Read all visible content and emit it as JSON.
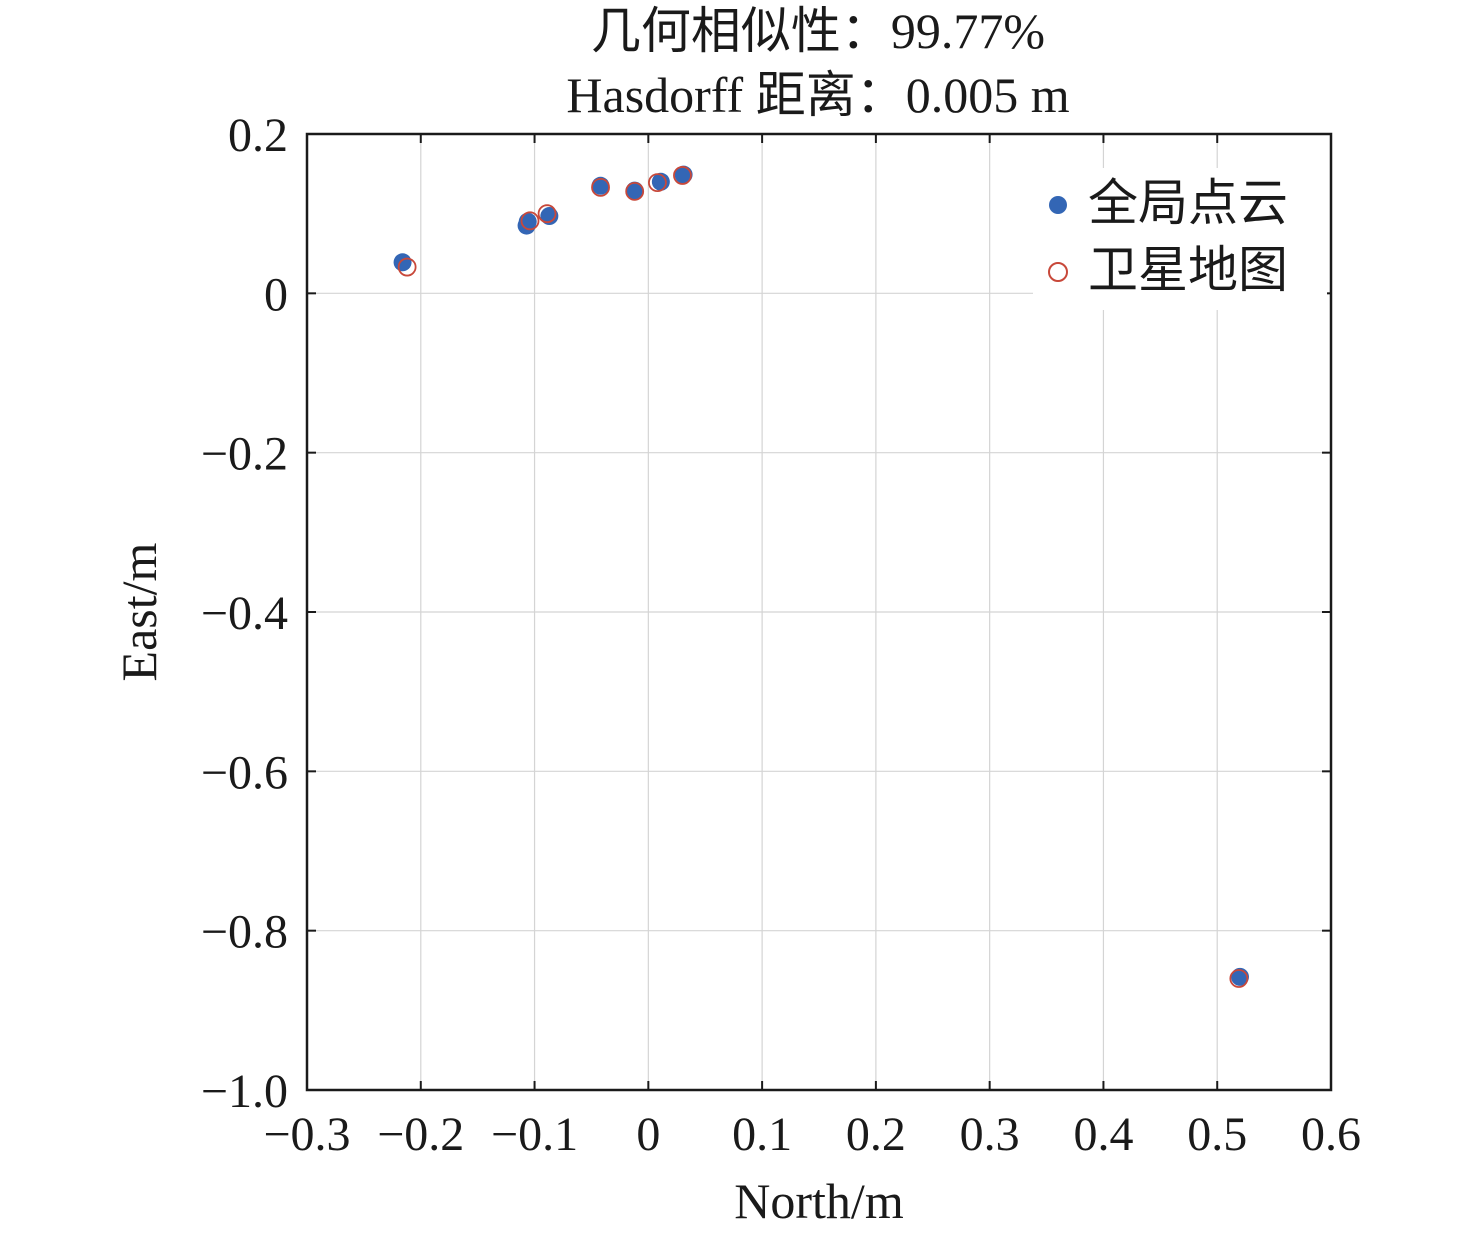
{
  "chart_data": {
    "type": "scatter",
    "title": [
      "几何相似性：99.77%",
      "Hasdorff 距离：0.005 m"
    ],
    "xlabel": "North/m",
    "ylabel": "East/m",
    "xlim": [
      -0.3,
      0.6
    ],
    "ylim": [
      -1.0,
      0.2
    ],
    "xticks": [
      -0.3,
      -0.2,
      -0.1,
      0,
      0.1,
      0.2,
      0.3,
      0.4,
      0.5,
      0.6
    ],
    "xtick_labels": [
      "−0.3",
      "−0.2",
      "−0.1",
      "0",
      "0.1",
      "0.2",
      "0.3",
      "0.4",
      "0.5",
      "0.6"
    ],
    "yticks": [
      0.2,
      0,
      -0.2,
      -0.4,
      -0.6,
      -0.8,
      -1.0
    ],
    "ytick_labels": [
      "0.2",
      "0",
      "−0.2",
      "−0.4",
      "−0.6",
      "−0.8",
      "−1.0"
    ],
    "grid": true,
    "legend_position": "top-right",
    "series": [
      {
        "name": "全局点云",
        "marker": "filled-circle",
        "color": "#3366b5",
        "points": [
          [
            -0.216,
            0.039
          ],
          [
            -0.107,
            0.085
          ],
          [
            -0.106,
            0.09
          ],
          [
            -0.087,
            0.097
          ],
          [
            -0.042,
            0.135
          ],
          [
            -0.012,
            0.129
          ],
          [
            0.011,
            0.14
          ],
          [
            0.031,
            0.149
          ],
          [
            0.52,
            -0.858
          ]
        ]
      },
      {
        "name": "卫星地图",
        "marker": "open-circle",
        "color": "#c8483a",
        "points": [
          [
            -0.212,
            0.033
          ],
          [
            -0.104,
            0.091
          ],
          [
            -0.089,
            0.1
          ],
          [
            -0.042,
            0.133
          ],
          [
            -0.012,
            0.128
          ],
          [
            0.008,
            0.139
          ],
          [
            0.03,
            0.148
          ],
          [
            0.519,
            -0.86
          ]
        ]
      }
    ]
  }
}
